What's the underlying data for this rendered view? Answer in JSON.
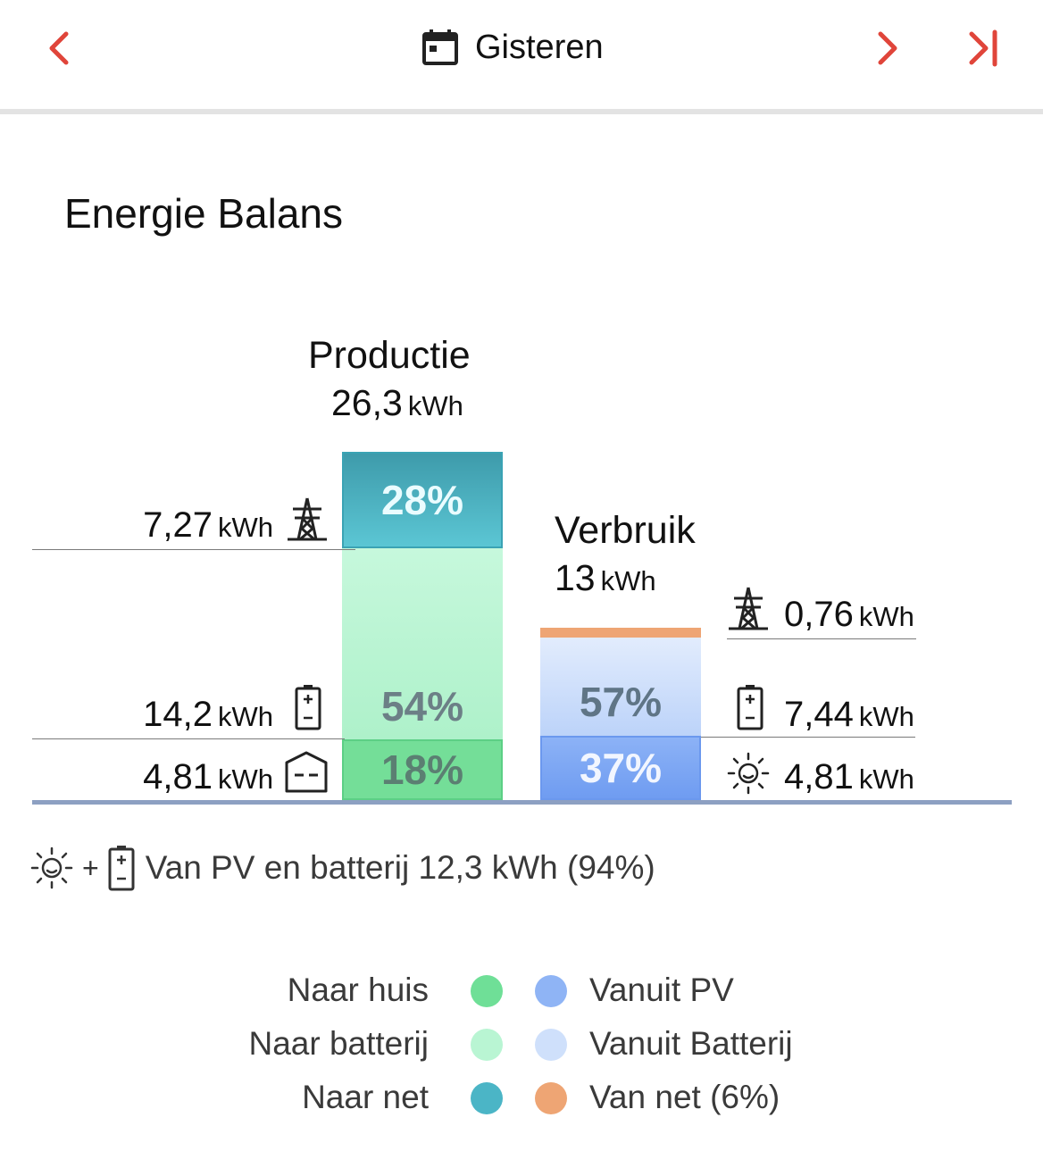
{
  "header": {
    "date_label": "Gisteren",
    "icons": [
      "chevron-left-icon",
      "calendar-icon",
      "chevron-right-icon",
      "skip-to-end-icon"
    ],
    "accent_color": "#e0453a"
  },
  "title": "Energie Balans",
  "productie": {
    "title": "Productie",
    "total_value": "26,3",
    "total_unit": "kWh",
    "segments": [
      {
        "percent": "28%",
        "color": "#4bb5c6"
      },
      {
        "percent": "54%",
        "color": "#b9f5d3"
      },
      {
        "percent": "18%",
        "color": "#6fdf97"
      }
    ],
    "values": [
      {
        "value": "7,27",
        "unit": "kWh",
        "icon": "power-tower-icon"
      },
      {
        "value": "14,2",
        "unit": "kWh",
        "icon": "battery-icon"
      },
      {
        "value": "4,81",
        "unit": "kWh",
        "icon": "house-icon"
      }
    ]
  },
  "verbruik": {
    "title": "Verbruik",
    "total_value": "13",
    "total_unit": "kWh",
    "segments": [
      {
        "percent": "",
        "color": "#eea574"
      },
      {
        "percent": "57%",
        "color": "#cfe0fb"
      },
      {
        "percent": "37%",
        "color": "#7ea7f4"
      }
    ],
    "values": [
      {
        "value": "0,76",
        "unit": "kWh",
        "icon": "power-tower-icon"
      },
      {
        "value": "7,44",
        "unit": "kWh",
        "icon": "battery-icon"
      },
      {
        "value": "4,81",
        "unit": "kWh",
        "icon": "sun-icon"
      }
    ]
  },
  "summary": {
    "plus": "+",
    "text": "Van PV en batterij 12,3 kWh (94%)"
  },
  "legend": {
    "left": [
      {
        "label": "Naar huis",
        "color": "#6fdf97"
      },
      {
        "label": "Naar batterij",
        "color": "#b9f5d3"
      },
      {
        "label": "Naar net",
        "color": "#4bb5c6"
      }
    ],
    "right": [
      {
        "label": "Vanuit PV",
        "color": "#8fb4f5"
      },
      {
        "label": "Vanuit Batterij",
        "color": "#cfe0fb"
      },
      {
        "label": "Van net (6%)",
        "color": "#eea574"
      }
    ]
  }
}
